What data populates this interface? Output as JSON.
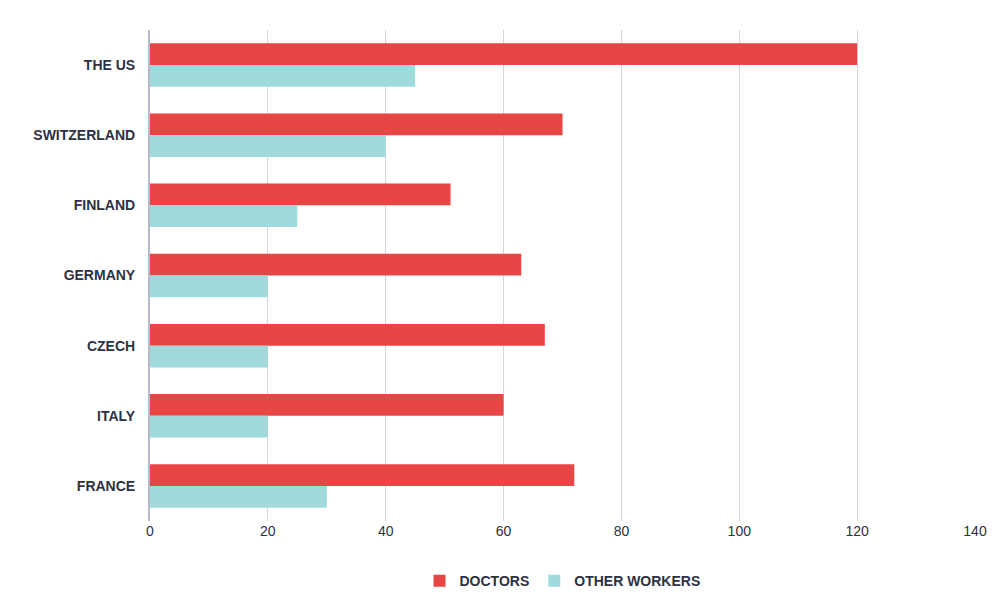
{
  "chart_data": {
    "type": "bar",
    "orientation": "horizontal",
    "categories": [
      "THE US",
      "SWITZERLAND",
      "FINLAND",
      "GERMANY",
      "CZECH",
      "ITALY",
      "FRANCE"
    ],
    "series": [
      {
        "name": "DOCTORS",
        "color": "#e84545",
        "values": [
          120,
          70,
          51,
          63,
          67,
          60,
          72
        ]
      },
      {
        "name": "OTHER WORKERS",
        "color": "#a0dadc",
        "values": [
          45,
          40,
          25,
          20,
          20,
          20,
          30
        ]
      }
    ],
    "xlim": [
      0,
      140
    ],
    "xticks": [
      0,
      20,
      40,
      60,
      80,
      100,
      120,
      140
    ],
    "grid": true,
    "legend": "bottom"
  }
}
